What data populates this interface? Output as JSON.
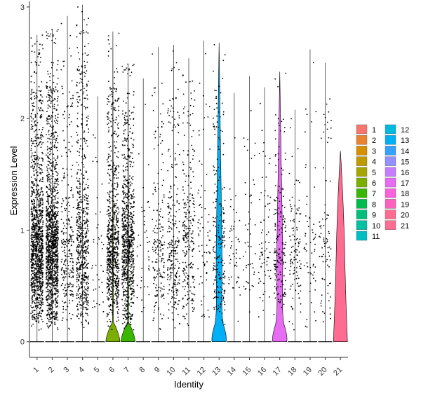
{
  "chart_data": {
    "type": "violin",
    "xlabel": "Identity",
    "ylabel": "Expression Level",
    "ylim": [
      -0.14,
      3.05
    ],
    "yticks": [
      0,
      1,
      2,
      3
    ],
    "categories": [
      "1",
      "2",
      "3",
      "4",
      "5",
      "6",
      "7",
      "8",
      "9",
      "10",
      "11",
      "12",
      "13",
      "14",
      "15",
      "16",
      "17",
      "18",
      "19",
      "20",
      "21"
    ],
    "colors": [
      "#F8766D",
      "#EA8331",
      "#D89000",
      "#C09B00",
      "#A3A500",
      "#7CAE00",
      "#39B600",
      "#00BB4E",
      "#00BF7D",
      "#00C1A3",
      "#00BFC4",
      "#00BAE0",
      "#00B0F6",
      "#35A2FF",
      "#9590FF",
      "#C77CFF",
      "#E76BF3",
      "#FA62DB",
      "#FF62BC",
      "#FF6C91",
      "#FF6C91"
    ],
    "legend_position": "right",
    "grid": false,
    "series": [
      {
        "name": "1",
        "max": 2.75,
        "density": 0.32,
        "points": 1200,
        "violin": "flat"
      },
      {
        "name": "2",
        "max": 2.8,
        "density": 0.35,
        "points": 1300,
        "violin": "flat"
      },
      {
        "name": "3",
        "max": 2.92,
        "density": 0.12,
        "points": 280,
        "violin": "flat"
      },
      {
        "name": "4",
        "max": 3.02,
        "density": 0.3,
        "points": 650,
        "violin": "flat"
      },
      {
        "name": "5",
        "max": 2.2,
        "density": 0.04,
        "points": 40,
        "violin": "flat"
      },
      {
        "name": "6",
        "max": 2.78,
        "density": 0.35,
        "points": 750,
        "violin": "bump"
      },
      {
        "name": "7",
        "max": 2.49,
        "density": 0.38,
        "points": 800,
        "violin": "bump"
      },
      {
        "name": "8",
        "max": 2.36,
        "density": 0.05,
        "points": 40,
        "violin": "flat"
      },
      {
        "name": "9",
        "max": 2.64,
        "density": 0.15,
        "points": 180,
        "violin": "flat"
      },
      {
        "name": "10",
        "max": 2.66,
        "density": 0.18,
        "points": 260,
        "violin": "flat"
      },
      {
        "name": "11",
        "max": 2.54,
        "density": 0.18,
        "points": 260,
        "violin": "flat"
      },
      {
        "name": "12",
        "max": 2.7,
        "density": 0.05,
        "points": 70,
        "violin": "flat"
      },
      {
        "name": "13",
        "max": 2.68,
        "density": 0.1,
        "points": 220,
        "violin": "violin"
      },
      {
        "name": "14",
        "max": 2.23,
        "density": 0.05,
        "points": 50,
        "violin": "flat"
      },
      {
        "name": "15",
        "max": 2.38,
        "density": 0.05,
        "points": 50,
        "violin": "flat"
      },
      {
        "name": "16",
        "max": 2.28,
        "density": 0.05,
        "points": 70,
        "violin": "flat"
      },
      {
        "name": "17",
        "max": 2.42,
        "density": 0.1,
        "points": 180,
        "violin": "violin"
      },
      {
        "name": "18",
        "max": 2.08,
        "density": 0.08,
        "points": 110,
        "violin": "flat"
      },
      {
        "name": "19",
        "max": 2.62,
        "density": 0.05,
        "points": 60,
        "violin": "flat"
      },
      {
        "name": "20",
        "max": 2.5,
        "density": 0.07,
        "points": 80,
        "violin": "flat"
      },
      {
        "name": "21",
        "max": 1.71,
        "density": 0.0,
        "points": 0,
        "violin": "full"
      }
    ]
  }
}
